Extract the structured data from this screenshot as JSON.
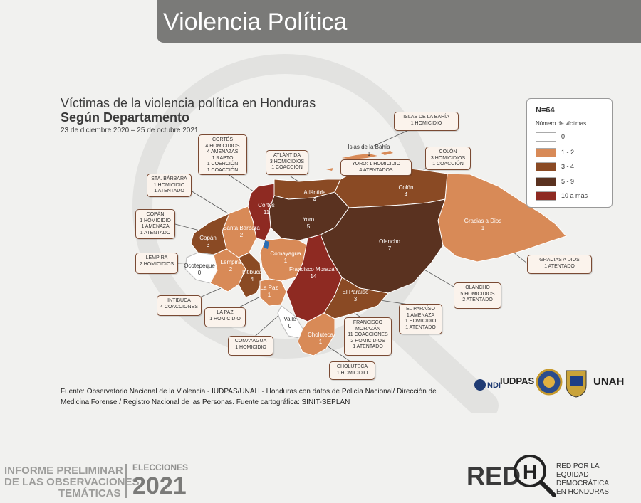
{
  "header": {
    "title": "Violencia Política"
  },
  "map": {
    "title": "Víctimas de la violencia política en Honduras",
    "subtitle": "Según Departamento",
    "date_range": "23 de diciembre 2020 – 25 de octubre 2021"
  },
  "departments": [
    {
      "name": "Cortés",
      "count": "11"
    },
    {
      "name": "Atlántida",
      "count": "4"
    },
    {
      "name": "Yoro",
      "count": "5"
    },
    {
      "name": "Colón",
      "count": "4"
    },
    {
      "name": "Gracias a Dios",
      "count": "1"
    },
    {
      "name": "Olancho",
      "count": "7"
    },
    {
      "name": "Santa Bárbara",
      "count": "2"
    },
    {
      "name": "Copán",
      "count": "3"
    },
    {
      "name": "Ocotepeque",
      "count": "0"
    },
    {
      "name": "Lempira",
      "count": "2"
    },
    {
      "name": "Intibucá",
      "count": "4"
    },
    {
      "name": "Comayagua",
      "count": "1"
    },
    {
      "name": "La Paz",
      "count": "1"
    },
    {
      "name": "Francisco Morazán",
      "count": "14"
    },
    {
      "name": "El Paraíso",
      "count": "3"
    },
    {
      "name": "Valle",
      "count": "0"
    },
    {
      "name": "Choluteca",
      "count": "1"
    },
    {
      "name": "Islas de la Bahía",
      "count": "1"
    }
  ],
  "callouts": [
    {
      "title": "ISLAS DE LA BAHÍA",
      "lines": [
        "1 HOMICIDIO"
      ]
    },
    {
      "title": "CORTÉS",
      "lines": [
        "4 HOMICIDIOS",
        "4 AMENAZAS",
        "1 RAPTO",
        "1 COERCIÓN",
        "1 COACCIÓN"
      ]
    },
    {
      "title": "ATLÁNTIDA",
      "lines": [
        "3 HOMICIDIOS",
        "1 COACCIÓN"
      ]
    },
    {
      "title": "YORO:",
      "lines": [
        "1 HOMICIDIO",
        "4 ATENTADOS"
      ]
    },
    {
      "title": "COLÓN",
      "lines": [
        "3 HOMICIDIOS",
        "1 COACCIÓN"
      ]
    },
    {
      "title": "STA. BÁRBARA",
      "lines": [
        "1 HOMICIDIO",
        "1 ATENTADO"
      ]
    },
    {
      "title": "COPÁN",
      "lines": [
        "1 HOMICIDIO",
        "1 AMENAZA",
        "1 ATENTADO"
      ]
    },
    {
      "title": "LEMPIRA",
      "lines": [
        "2 HOMICIDIOS"
      ]
    },
    {
      "title": "INTIBUCÁ",
      "lines": [
        "4 COACCIONES"
      ]
    },
    {
      "title": "LA PAZ",
      "lines": [
        "1 HOMICIDIO"
      ]
    },
    {
      "title": "COMAYAGUA",
      "lines": [
        "1 HOMICIDIO"
      ]
    },
    {
      "title": "FRANCISCO MORAZÁN",
      "lines": [
        "11 COACCIONES",
        "2 HOMICIDIOS",
        "1 ATENTADO"
      ]
    },
    {
      "title": "CHOLUTECA",
      "lines": [
        "1 HOMICIDIO"
      ]
    },
    {
      "title": "EL PARAÍSO",
      "lines": [
        "1 AMENAZA",
        "1 HOMICIDIO",
        "1 ATENTADO"
      ]
    },
    {
      "title": "OLANCHO",
      "lines": [
        "5 HOMICIDIOS",
        "2 ATENTADO"
      ]
    },
    {
      "title": "GRACIAS A DIOS",
      "lines": [
        "1 ATENTADO"
      ]
    }
  ],
  "legend": {
    "n": "N=64",
    "subtitle": "Número de víctimas",
    "items": [
      {
        "label": "0",
        "color": "#ffffff"
      },
      {
        "label": "1 - 2",
        "color": "#d88a57"
      },
      {
        "label": "3 - 4",
        "color": "#8a4a24"
      },
      {
        "label": "5 - 9",
        "color": "#5a3220"
      },
      {
        "label": "10 a más",
        "color": "#8e2a22"
      }
    ]
  },
  "source": "Fuente: Observatorio Nacional de la Violencia - IUDPAS/UNAH - Honduras con datos de Policía Nacional/ Dirección de Medicina Forense / Registro Nacional de las Personas. Fuente cartográfica: SINIT-SEPLAN",
  "logos": {
    "ndi": "NDI",
    "iudpas": "IUDPAS",
    "unah": "UNAH"
  },
  "footer": {
    "left_line1": "INFORME PRELIMINAR",
    "left_line2": "DE LAS OBSERVACIONES",
    "left_line3": "TEMÁTICAS",
    "elecciones": "ELECCIONES",
    "year": "2021",
    "red_logo": "RED",
    "red_tag1": "RED POR LA",
    "red_tag2": "EQUIDAD DEMOCRÁTICA",
    "red_tag3": "EN HONDURAS"
  },
  "colors": {
    "c0": "#ffffff",
    "c12": "#d88a57",
    "c34": "#8a4a24",
    "c59": "#5a3220",
    "c10": "#8e2a22"
  }
}
